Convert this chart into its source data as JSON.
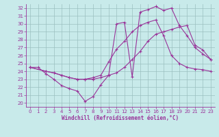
{
  "xlabel": "Windchill (Refroidissement éolien,°C)",
  "bg_color": "#c8eaea",
  "grid_color": "#9bbfbf",
  "line_color": "#993399",
  "xlim": [
    -0.5,
    23.5
  ],
  "ylim": [
    19.5,
    32.5
  ],
  "xticks": [
    0,
    1,
    2,
    3,
    4,
    5,
    6,
    7,
    8,
    9,
    10,
    11,
    12,
    13,
    14,
    15,
    16,
    17,
    18,
    19,
    20,
    21,
    22,
    23
  ],
  "yticks": [
    20,
    21,
    22,
    23,
    24,
    25,
    26,
    27,
    28,
    29,
    30,
    31,
    32
  ],
  "line1_x": [
    0,
    1,
    2,
    3,
    4,
    5,
    6,
    7,
    8,
    9,
    10,
    11,
    12,
    13,
    14,
    15,
    16,
    17,
    18,
    19,
    20,
    21,
    22,
    23
  ],
  "line1_y": [
    24.5,
    24.5,
    23.7,
    23.0,
    22.2,
    21.8,
    21.5,
    20.2,
    20.8,
    22.3,
    23.5,
    30.0,
    30.2,
    23.3,
    31.5,
    31.8,
    32.2,
    31.7,
    32.0,
    29.8,
    28.5,
    27.0,
    26.2,
    25.5
  ],
  "line2_x": [
    0,
    2,
    3,
    4,
    5,
    6,
    7,
    8,
    9,
    10,
    11,
    12,
    13,
    14,
    15,
    16,
    17,
    18,
    19,
    20,
    21,
    22,
    23
  ],
  "line2_y": [
    24.5,
    24.0,
    23.8,
    23.5,
    23.2,
    23.0,
    23.0,
    23.0,
    23.2,
    23.5,
    23.8,
    24.5,
    25.5,
    26.5,
    27.8,
    28.7,
    29.0,
    29.3,
    29.6,
    29.8,
    27.3,
    26.7,
    25.5
  ],
  "line3_x": [
    0,
    2,
    3,
    4,
    5,
    6,
    7,
    8,
    9,
    10,
    11,
    12,
    13,
    14,
    15,
    16,
    17,
    18,
    19,
    20,
    21,
    22,
    23
  ],
  "line3_y": [
    24.5,
    24.0,
    23.8,
    23.5,
    23.2,
    23.0,
    23.0,
    23.2,
    23.5,
    25.2,
    26.8,
    27.8,
    29.0,
    29.8,
    30.2,
    30.5,
    28.5,
    26.0,
    25.0,
    24.5,
    24.3,
    24.2,
    24.0
  ]
}
